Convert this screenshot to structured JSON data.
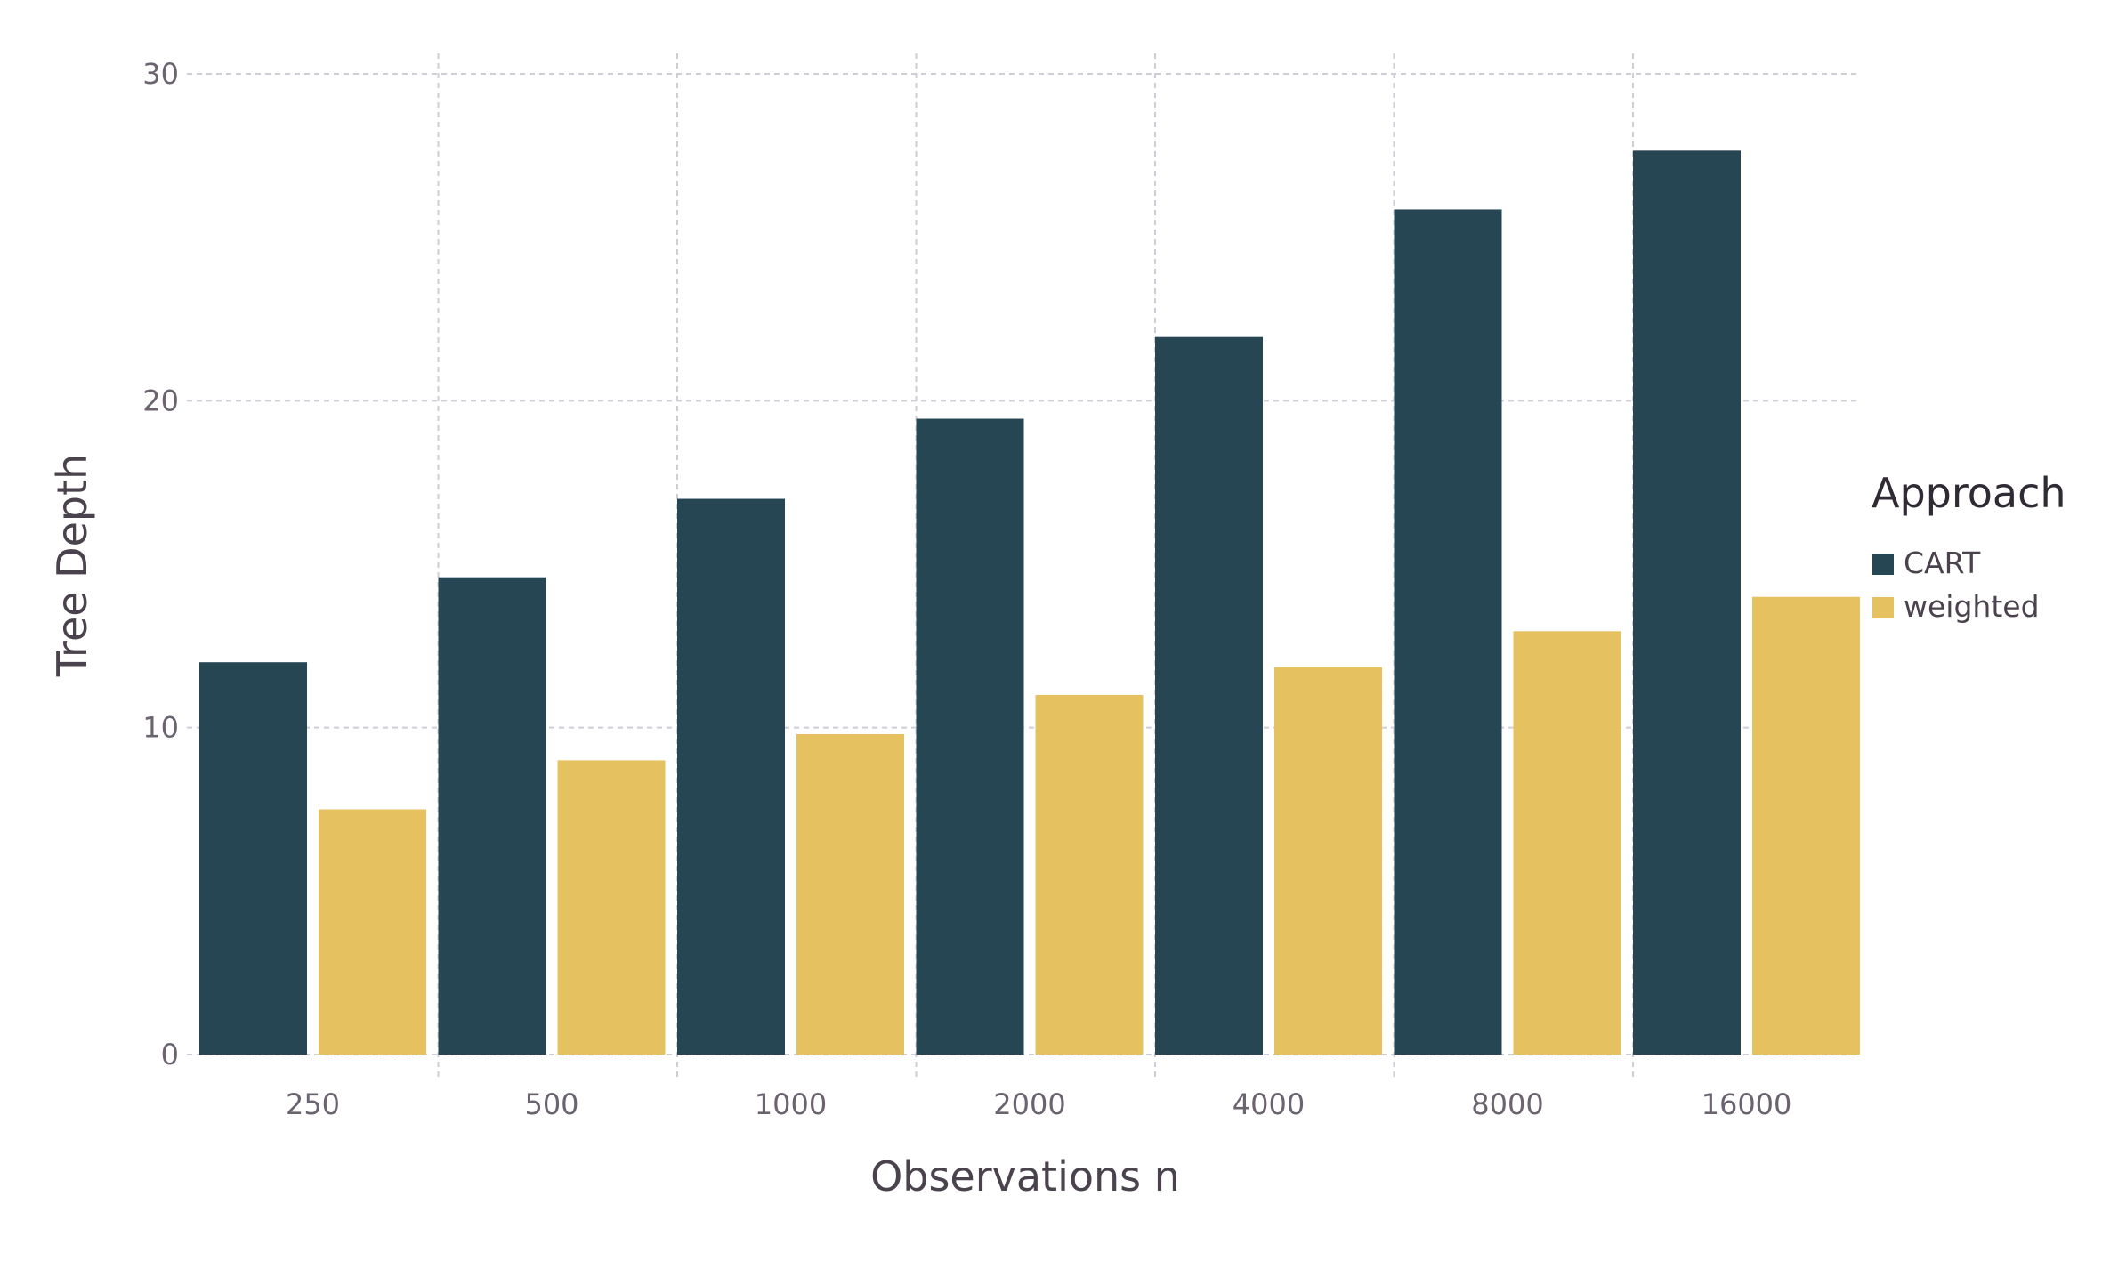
{
  "chart_data": {
    "type": "bar",
    "title": "",
    "xlabel": "Observations n",
    "ylabel": "Tree Depth",
    "categories": [
      "250",
      "500",
      "1000",
      "2000",
      "4000",
      "8000",
      "16000"
    ],
    "series": [
      {
        "name": "CART",
        "color": "#264653",
        "values": [
          12.0,
          14.6,
          17.0,
          19.45,
          21.95,
          25.85,
          27.65
        ]
      },
      {
        "name": "weighted",
        "color": "#e6c160",
        "values": [
          7.5,
          9.0,
          9.8,
          11.0,
          11.85,
          12.95,
          14.0
        ]
      }
    ],
    "ylim": [
      0,
      30
    ],
    "yticks": [
      "0",
      "10",
      "20",
      "30"
    ],
    "ytick_values": [
      0,
      10,
      20,
      30
    ],
    "grid": true,
    "legend": {
      "title": "Approach",
      "placement": "right"
    }
  }
}
